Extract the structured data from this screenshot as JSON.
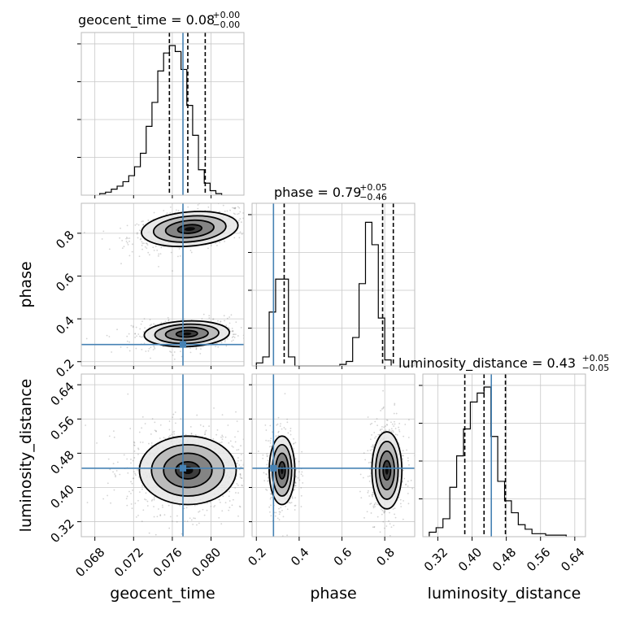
{
  "chart_data": {
    "type": "corner",
    "parameters": [
      "geocent_time",
      "phase",
      "luminosity_distance"
    ],
    "truth": {
      "geocent_time": 0.0771,
      "phase": 0.28,
      "luminosity_distance": 0.445
    },
    "titles": [
      {
        "param": "geocent_time",
        "text": "geocent_time = 0.08",
        "plus": "+0.00",
        "minus": "−0.00"
      },
      {
        "param": "phase",
        "text": "phase = 0.79",
        "plus": "+0.05",
        "minus": "−0.46"
      },
      {
        "param": "luminosity_distance",
        "text": "luminosity_distance = 0.43",
        "plus": "+0.05",
        "minus": "−0.05"
      }
    ],
    "axes": {
      "geocent_time": {
        "range": [
          0.0666,
          0.0834
        ],
        "ticks": [
          "0.068",
          "0.072",
          "0.076",
          "0.080"
        ],
        "tick_values": [
          0.068,
          0.072,
          0.076,
          0.08
        ]
      },
      "phase": {
        "range": [
          0.18,
          0.94
        ],
        "ticks": [
          "0.2",
          "0.4",
          "0.6",
          "0.8"
        ],
        "tick_values": [
          0.2,
          0.4,
          0.6,
          0.8
        ]
      },
      "luminosity_distance": {
        "range": [
          0.285,
          0.665
        ],
        "ticks": [
          "0.32",
          "0.40",
          "0.48",
          "0.56",
          "0.64"
        ],
        "tick_values": [
          0.32,
          0.4,
          0.48,
          0.56,
          0.64
        ]
      }
    },
    "quantile_lines": {
      "geocent_time": [
        0.0757,
        0.0776,
        0.0794
      ],
      "phase": [
        0.33,
        0.79,
        0.84
      ],
      "luminosity_distance": [
        0.383,
        0.428,
        0.478
      ]
    },
    "histograms": {
      "geocent_time": {
        "bin_start": 0.0685,
        "bin_width": 0.0006,
        "counts": [
          0.01,
          0.02,
          0.04,
          0.06,
          0.09,
          0.13,
          0.19,
          0.28,
          0.46,
          0.62,
          0.83,
          0.95,
          1.0,
          0.96,
          0.84,
          0.6,
          0.4,
          0.17,
          0.08,
          0.03,
          0.01
        ]
      },
      "phase": {
        "bin_start": 0.2,
        "bin_width": 0.03,
        "counts": [
          0.02,
          0.06,
          0.36,
          0.58,
          0.58,
          0.06,
          0,
          0,
          0,
          0,
          0,
          0,
          0,
          0.01,
          0.03,
          0.19,
          0.55,
          0.96,
          0.81,
          0.32,
          0.04
        ]
      },
      "luminosity_distance": {
        "bin_start": 0.3,
        "bin_width": 0.016,
        "counts": [
          0.03,
          0.06,
          0.12,
          0.33,
          0.54,
          0.72,
          0.9,
          0.96,
          1.0,
          0.67,
          0.37,
          0.24,
          0.16,
          0.08,
          0.05,
          0.02,
          0.02,
          0.01,
          0.01,
          0.01
        ]
      }
    },
    "scatter_modes": {
      "geocent_time_phase": [
        {
          "cx": 0.0778,
          "cy": 0.82,
          "sx": 0.0025,
          "sy": 0.04,
          "rho": 0.4,
          "weight": 0.55
        },
        {
          "cx": 0.0775,
          "cy": 0.33,
          "sx": 0.0022,
          "sy": 0.03,
          "rho": 0.2,
          "weight": 0.45
        }
      ],
      "geocent_time_luminosity_distance": [
        {
          "cx": 0.0776,
          "cy": 0.44,
          "sx": 0.0025,
          "sy": 0.04,
          "rho": 0.0,
          "weight": 1.0
        }
      ],
      "phase_luminosity_distance": [
        {
          "cx": 0.32,
          "cy": 0.44,
          "sx": 0.03,
          "sy": 0.04,
          "rho": 0.0,
          "weight": 0.45
        },
        {
          "cx": 0.81,
          "cy": 0.44,
          "sx": 0.035,
          "sy": 0.045,
          "rho": 0.0,
          "weight": 0.55
        }
      ]
    },
    "colors": {
      "truth": "#4682b4",
      "contour": "#000000",
      "grid": "#c8c8c8",
      "scatter": "#808080"
    },
    "xlabels": [
      "geocent_time",
      "phase",
      "luminosity_distance"
    ],
    "ylabels": [
      "phase",
      "luminosity_distance"
    ],
    "grid": true
  }
}
